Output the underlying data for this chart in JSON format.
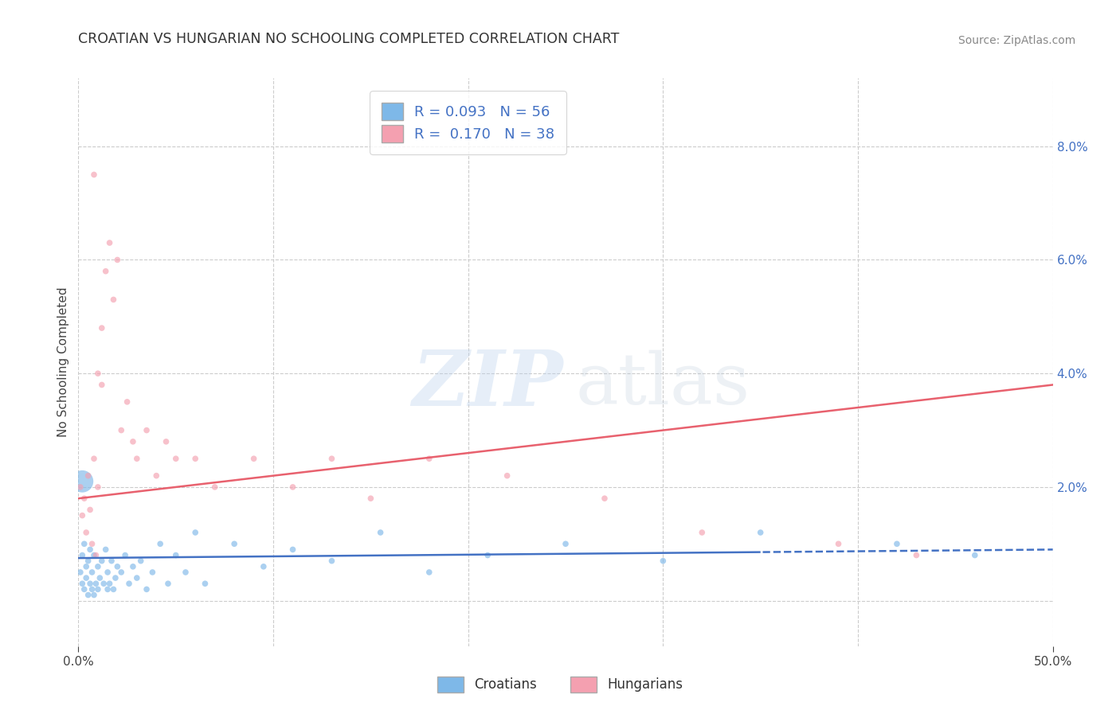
{
  "title": "CROATIAN VS HUNGARIAN NO SCHOOLING COMPLETED CORRELATION CHART",
  "source": "Source: ZipAtlas.com",
  "ylabel": "No Schooling Completed",
  "ytick_labels": [
    "",
    "2.0%",
    "4.0%",
    "6.0%",
    "8.0%"
  ],
  "ytick_values": [
    0.0,
    0.02,
    0.04,
    0.06,
    0.08
  ],
  "xlim": [
    0.0,
    0.5
  ],
  "ylim": [
    -0.008,
    0.092
  ],
  "xgrid_values": [
    0.0,
    0.1,
    0.2,
    0.3,
    0.4,
    0.5
  ],
  "ygrid_values": [
    0.0,
    0.02,
    0.04,
    0.06,
    0.08
  ],
  "croatian_R": 0.093,
  "croatian_N": 56,
  "hungarian_R": 0.17,
  "hungarian_N": 38,
  "croatian_color": "#7EB8E8",
  "hungarian_color": "#F4A0B0",
  "croatian_line_color": "#4472C4",
  "hungarian_line_color": "#E8616E",
  "legend_label_croatian": "Croatians",
  "legend_label_hungarian": "Hungarians",
  "croatian_line_intercept": 0.0075,
  "croatian_line_slope": 0.003,
  "hungarian_line_intercept": 0.018,
  "hungarian_line_slope": 0.04,
  "croatian_x": [
    0.001,
    0.002,
    0.002,
    0.003,
    0.003,
    0.004,
    0.004,
    0.005,
    0.005,
    0.006,
    0.006,
    0.007,
    0.007,
    0.008,
    0.008,
    0.009,
    0.01,
    0.01,
    0.011,
    0.012,
    0.013,
    0.014,
    0.015,
    0.015,
    0.016,
    0.017,
    0.018,
    0.019,
    0.02,
    0.022,
    0.024,
    0.026,
    0.028,
    0.03,
    0.032,
    0.035,
    0.038,
    0.042,
    0.046,
    0.05,
    0.055,
    0.06,
    0.065,
    0.08,
    0.095,
    0.11,
    0.13,
    0.155,
    0.18,
    0.21,
    0.25,
    0.3,
    0.35,
    0.42,
    0.46,
    0.002
  ],
  "croatian_y": [
    0.005,
    0.003,
    0.008,
    0.002,
    0.01,
    0.004,
    0.006,
    0.001,
    0.007,
    0.003,
    0.009,
    0.002,
    0.005,
    0.001,
    0.008,
    0.003,
    0.006,
    0.002,
    0.004,
    0.007,
    0.003,
    0.009,
    0.002,
    0.005,
    0.003,
    0.007,
    0.002,
    0.004,
    0.006,
    0.005,
    0.008,
    0.003,
    0.006,
    0.004,
    0.007,
    0.002,
    0.005,
    0.01,
    0.003,
    0.008,
    0.005,
    0.012,
    0.003,
    0.01,
    0.006,
    0.009,
    0.007,
    0.012,
    0.005,
    0.008,
    0.01,
    0.007,
    0.012,
    0.01,
    0.008,
    0.021
  ],
  "croatian_sizes": [
    30,
    30,
    30,
    30,
    30,
    30,
    30,
    30,
    30,
    30,
    30,
    30,
    30,
    30,
    30,
    30,
    30,
    30,
    30,
    30,
    30,
    30,
    30,
    30,
    30,
    30,
    30,
    30,
    30,
    30,
    30,
    30,
    30,
    30,
    30,
    30,
    30,
    30,
    30,
    30,
    30,
    30,
    30,
    30,
    30,
    30,
    30,
    30,
    30,
    30,
    30,
    30,
    30,
    30,
    30,
    400
  ],
  "hungarian_x": [
    0.001,
    0.002,
    0.003,
    0.004,
    0.005,
    0.006,
    0.007,
    0.008,
    0.009,
    0.01,
    0.012,
    0.014,
    0.016,
    0.018,
    0.02,
    0.022,
    0.025,
    0.028,
    0.03,
    0.035,
    0.04,
    0.045,
    0.05,
    0.06,
    0.07,
    0.09,
    0.11,
    0.13,
    0.15,
    0.18,
    0.22,
    0.27,
    0.32,
    0.39,
    0.43,
    0.008,
    0.01,
    0.012
  ],
  "hungarian_y": [
    0.02,
    0.015,
    0.018,
    0.012,
    0.022,
    0.016,
    0.01,
    0.025,
    0.008,
    0.02,
    0.048,
    0.058,
    0.063,
    0.053,
    0.06,
    0.03,
    0.035,
    0.028,
    0.025,
    0.03,
    0.022,
    0.028,
    0.025,
    0.025,
    0.02,
    0.025,
    0.02,
    0.025,
    0.018,
    0.025,
    0.022,
    0.018,
    0.012,
    0.01,
    0.008,
    0.075,
    0.04,
    0.038
  ],
  "hungarian_sizes": [
    30,
    30,
    30,
    30,
    30,
    30,
    30,
    30,
    30,
    30,
    30,
    30,
    30,
    30,
    30,
    30,
    30,
    30,
    30,
    30,
    30,
    30,
    30,
    30,
    30,
    30,
    30,
    30,
    30,
    30,
    30,
    30,
    30,
    30,
    30,
    30,
    30,
    30
  ]
}
